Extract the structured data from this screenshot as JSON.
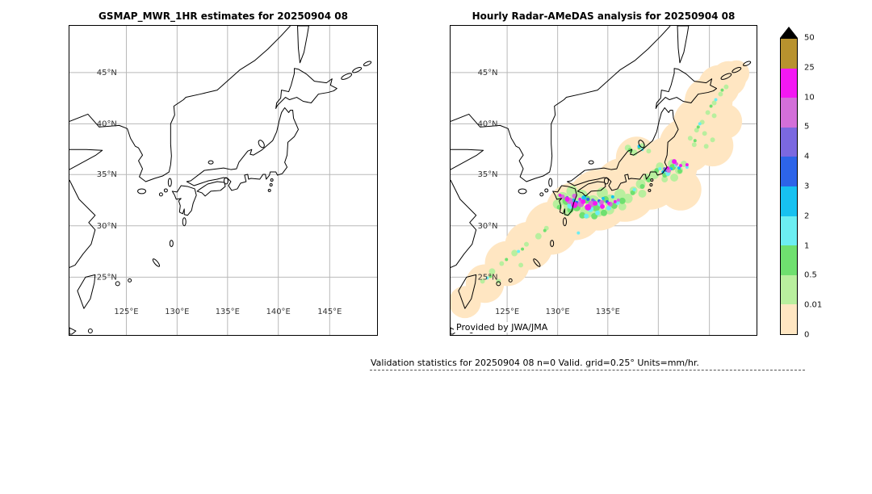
{
  "chart_data": {
    "type": "heatmap",
    "panels": [
      {
        "title": "GSMAP_MWR_1HR estimates for 20250904 08",
        "has_data": false,
        "lon_ticks": [
          {
            "label": "125°E",
            "f": 0.185
          },
          {
            "label": "130°E",
            "f": 0.35
          },
          {
            "label": "135°E",
            "f": 0.514
          },
          {
            "label": "140°E",
            "f": 0.679
          },
          {
            "label": "145°E",
            "f": 0.846
          }
        ],
        "lat_ticks": [
          {
            "label": "45°N",
            "f": 0.151
          },
          {
            "label": "40°N",
            "f": 0.317
          },
          {
            "label": "35°N",
            "f": 0.481
          },
          {
            "label": "30°N",
            "f": 0.647
          },
          {
            "label": "25°N",
            "f": 0.813
          }
        ]
      },
      {
        "title": "Hourly Radar-AMeDAS analysis for 20250904 08",
        "has_data": true,
        "attribution": "Provided by JWA/JMA",
        "lon_ticks": [
          {
            "label": "125°E",
            "f": 0.185
          },
          {
            "label": "130°E",
            "f": 0.35
          },
          {
            "label": "135°E",
            "f": 0.514
          },
          {
            "label": "",
            "f": 0.679
          },
          {
            "label": "",
            "f": 0.846
          }
        ],
        "lat_ticks": [
          {
            "label": "45°N",
            "f": 0.151
          },
          {
            "label": "40°N",
            "f": 0.317
          },
          {
            "label": "35°N",
            "f": 0.481
          },
          {
            "label": "30°N",
            "f": 0.647
          },
          {
            "label": "25°N",
            "f": 0.813
          }
        ]
      }
    ],
    "colorbar": {
      "labels": [
        "50",
        "25",
        "10",
        "5",
        "4",
        "3",
        "2",
        "1",
        "0.5",
        "0.01",
        "0"
      ],
      "segments": [
        {
          "range": "25-50",
          "color": "#b8922e"
        },
        {
          "range": "10-25",
          "color": "#f318f3"
        },
        {
          "range": "5-10",
          "color": "#d36fd9"
        },
        {
          "range": "4-5",
          "color": "#7b68e0"
        },
        {
          "range": "3-4",
          "color": "#2d64e8"
        },
        {
          "range": "2-3",
          "color": "#17c1f0"
        },
        {
          "range": "1-2",
          "color": "#6ceef2"
        },
        {
          "range": "0.5-1",
          "color": "#6fe06f"
        },
        {
          "range": "0.01-0.5",
          "color": "#b9ef9e"
        },
        {
          "range": "0-0.01",
          "color": "#ffe6c2"
        }
      ]
    },
    "palette": {
      "p": "#ffe6c2",
      "g0": "#b9ef9e",
      "g1": "#6fe06f",
      "c0": "#6ceef2",
      "c1": "#17c1f0",
      "b0": "#2d64e8",
      "b1": "#7b68e0",
      "v": "#d36fd9",
      "m": "#f318f3"
    },
    "precip_cells": [
      [
        18,
        344,
        20,
        "p"
      ],
      [
        43,
        321,
        24,
        "p"
      ],
      [
        71,
        296,
        28,
        "p"
      ],
      [
        98,
        274,
        30,
        "p"
      ],
      [
        126,
        252,
        33,
        "p"
      ],
      [
        155,
        231,
        36,
        "p"
      ],
      [
        185,
        217,
        38,
        "p"
      ],
      [
        218,
        204,
        40,
        "p"
      ],
      [
        249,
        191,
        38,
        "p"
      ],
      [
        273,
        174,
        36,
        "p"
      ],
      [
        295,
        149,
        34,
        "p"
      ],
      [
        311,
        121,
        32,
        "p"
      ],
      [
        323,
        94,
        30,
        "p"
      ],
      [
        336,
        75,
        26,
        "p"
      ],
      [
        348,
        66,
        22,
        "p"
      ],
      [
        358,
        59,
        16,
        "p"
      ],
      [
        328,
        149,
        26,
        "p"
      ],
      [
        343,
        119,
        22,
        "p"
      ],
      [
        288,
        204,
        26,
        "p"
      ],
      [
        233,
        164,
        26,
        "p"
      ],
      [
        40,
        318,
        3,
        "g0"
      ],
      [
        52,
        306,
        4,
        "g0"
      ],
      [
        64,
        296,
        3,
        "g0"
      ],
      [
        80,
        283,
        4,
        "g0"
      ],
      [
        95,
        272,
        3,
        "g0"
      ],
      [
        60,
        318,
        3,
        "g0"
      ],
      [
        88,
        298,
        3,
        "g0"
      ],
      [
        110,
        262,
        4,
        "g0"
      ],
      [
        120,
        252,
        3,
        "g0"
      ],
      [
        140,
        215,
        8,
        "g0"
      ],
      [
        152,
        206,
        7,
        "g0"
      ],
      [
        150,
        222,
        9,
        "g0"
      ],
      [
        164,
        212,
        8,
        "g0"
      ],
      [
        178,
        220,
        9,
        "g0"
      ],
      [
        190,
        208,
        7,
        "g0"
      ],
      [
        200,
        218,
        8,
        "g0"
      ],
      [
        212,
        210,
        7,
        "g0"
      ],
      [
        222,
        215,
        6,
        "g0"
      ],
      [
        170,
        232,
        8,
        "g0"
      ],
      [
        185,
        231,
        7,
        "g0"
      ],
      [
        199,
        229,
        6,
        "g0"
      ],
      [
        146,
        231,
        6,
        "g0"
      ],
      [
        134,
        222,
        6,
        "g0"
      ],
      [
        215,
        225,
        5,
        "g0"
      ],
      [
        229,
        205,
        5,
        "g0"
      ],
      [
        238,
        197,
        6,
        "g0"
      ],
      [
        246,
        189,
        5,
        "g0"
      ],
      [
        240,
        209,
        5,
        "g0"
      ],
      [
        255,
        185,
        6,
        "g0"
      ],
      [
        262,
        175,
        5,
        "g0"
      ],
      [
        270,
        182,
        6,
        "g0"
      ],
      [
        278,
        172,
        6,
        "g0"
      ],
      [
        286,
        180,
        5,
        "g0"
      ],
      [
        292,
        172,
        4,
        "g0"
      ],
      [
        280,
        189,
        5,
        "g0"
      ],
      [
        268,
        191,
        4,
        "g0"
      ],
      [
        222,
        152,
        4,
        "g0"
      ],
      [
        230,
        158,
        4,
        "g0"
      ],
      [
        240,
        150,
        4,
        "g0"
      ],
      [
        248,
        156,
        3,
        "g0"
      ],
      [
        300,
        140,
        3,
        "g0"
      ],
      [
        308,
        130,
        3,
        "g0"
      ],
      [
        315,
        120,
        3,
        "g0"
      ],
      [
        305,
        148,
        3,
        "g0"
      ],
      [
        322,
        108,
        3,
        "g0"
      ],
      [
        330,
        96,
        3,
        "g0"
      ],
      [
        338,
        85,
        3,
        "g0"
      ],
      [
        345,
        76,
        3,
        "g0"
      ],
      [
        330,
        112,
        3,
        "g0"
      ],
      [
        318,
        134,
        3,
        "g0"
      ],
      [
        320,
        150,
        3,
        "g0"
      ],
      [
        328,
        142,
        3,
        "g0"
      ],
      [
        145,
        218,
        5,
        "g1"
      ],
      [
        158,
        226,
        5,
        "g1"
      ],
      [
        170,
        216,
        5,
        "g1"
      ],
      [
        182,
        226,
        5,
        "g1"
      ],
      [
        194,
        216,
        4,
        "g1"
      ],
      [
        205,
        224,
        4,
        "g1"
      ],
      [
        215,
        218,
        4,
        "g1"
      ],
      [
        165,
        236,
        4,
        "g1"
      ],
      [
        180,
        237,
        4,
        "g1"
      ],
      [
        192,
        233,
        4,
        "g1"
      ],
      [
        150,
        229,
        4,
        "g1"
      ],
      [
        136,
        226,
        3,
        "g1"
      ],
      [
        228,
        208,
        3,
        "g1"
      ],
      [
        240,
        200,
        3,
        "g1"
      ],
      [
        258,
        180,
        3,
        "g1"
      ],
      [
        268,
        186,
        3,
        "g1"
      ],
      [
        278,
        176,
        4,
        "g1"
      ],
      [
        287,
        181,
        3,
        "g1"
      ],
      [
        248,
        192,
        3,
        "g1"
      ],
      [
        225,
        155,
        3,
        "g1"
      ],
      [
        236,
        152,
        2,
        "g1"
      ],
      [
        310,
        126,
        2,
        "g1"
      ],
      [
        326,
        100,
        2,
        "g1"
      ],
      [
        70,
        291,
        2,
        "g1"
      ],
      [
        90,
        278,
        2,
        "g1"
      ],
      [
        118,
        255,
        2,
        "g1"
      ],
      [
        306,
        143,
        2,
        "g1"
      ],
      [
        340,
        80,
        2,
        "g1"
      ],
      [
        50,
        312,
        2,
        "g1"
      ],
      [
        150,
        224,
        4,
        "c0"
      ],
      [
        163,
        220,
        4,
        "c0"
      ],
      [
        175,
        228,
        4,
        "c0"
      ],
      [
        187,
        222,
        3,
        "c0"
      ],
      [
        198,
        227,
        3,
        "c0"
      ],
      [
        209,
        220,
        3,
        "c0"
      ],
      [
        170,
        237,
        3,
        "c0"
      ],
      [
        184,
        233,
        3,
        "c0"
      ],
      [
        230,
        204,
        2,
        "c0"
      ],
      [
        262,
        178,
        2,
        "c0"
      ],
      [
        272,
        184,
        3,
        "c0"
      ],
      [
        282,
        174,
        2,
        "c0"
      ],
      [
        240,
        154,
        2,
        "c0"
      ],
      [
        312,
        122,
        2,
        "c0"
      ],
      [
        46,
        314,
        2,
        "c0"
      ],
      [
        85,
        281,
        2,
        "c0"
      ],
      [
        160,
        258,
        2,
        "c0"
      ],
      [
        332,
        92,
        2,
        "c0"
      ],
      [
        296,
        176,
        2,
        "c0"
      ],
      [
        154,
        218,
        3,
        "c1"
      ],
      [
        167,
        214,
        3,
        "c1"
      ],
      [
        179,
        219,
        3,
        "c1"
      ],
      [
        191,
        215,
        2,
        "c1"
      ],
      [
        203,
        213,
        2,
        "c1"
      ],
      [
        266,
        182,
        2,
        "c1"
      ],
      [
        276,
        178,
        2,
        "c1"
      ],
      [
        286,
        177,
        2,
        "c1"
      ],
      [
        236,
        150,
        2,
        "c1"
      ],
      [
        158,
        220,
        2,
        "b0"
      ],
      [
        172,
        216,
        2,
        "b0"
      ],
      [
        186,
        218,
        2,
        "b0"
      ],
      [
        196,
        219,
        2,
        "b0"
      ],
      [
        270,
        180,
        2,
        "b0"
      ],
      [
        161,
        221,
        2,
        "b1"
      ],
      [
        178,
        217,
        2,
        "b1"
      ],
      [
        268,
        178,
        2,
        "b1"
      ],
      [
        146,
        214,
        2,
        "b1"
      ],
      [
        149,
        218,
        4,
        "v"
      ],
      [
        163,
        222,
        4,
        "v"
      ],
      [
        176,
        222,
        4,
        "v"
      ],
      [
        189,
        220,
        3,
        "v"
      ],
      [
        200,
        222,
        3,
        "v"
      ],
      [
        140,
        213,
        3,
        "v"
      ],
      [
        210,
        217,
        2,
        "v"
      ],
      [
        273,
        180,
        3,
        "v"
      ],
      [
        283,
        172,
        2,
        "v"
      ],
      [
        155,
        212,
        3,
        "v"
      ],
      [
        146,
        216,
        3,
        "m"
      ],
      [
        155,
        223,
        4,
        "m"
      ],
      [
        166,
        219,
        3,
        "m"
      ],
      [
        172,
        226,
        4,
        "m"
      ],
      [
        181,
        221,
        3,
        "m"
      ],
      [
        190,
        225,
        3,
        "m"
      ],
      [
        198,
        221,
        2,
        "m"
      ],
      [
        206,
        219,
        2,
        "m"
      ],
      [
        137,
        211,
        2,
        "m"
      ],
      [
        280,
        169,
        3,
        "m"
      ],
      [
        272,
        177,
        2,
        "m"
      ],
      [
        288,
        174,
        2,
        "m"
      ],
      [
        296,
        173,
        2,
        "m"
      ],
      [
        162,
        216,
        2,
        "m"
      ]
    ],
    "footer": "Validation statistics for 20250904 08  n=0 Valid. grid=0.25° Units=mm/hr."
  }
}
